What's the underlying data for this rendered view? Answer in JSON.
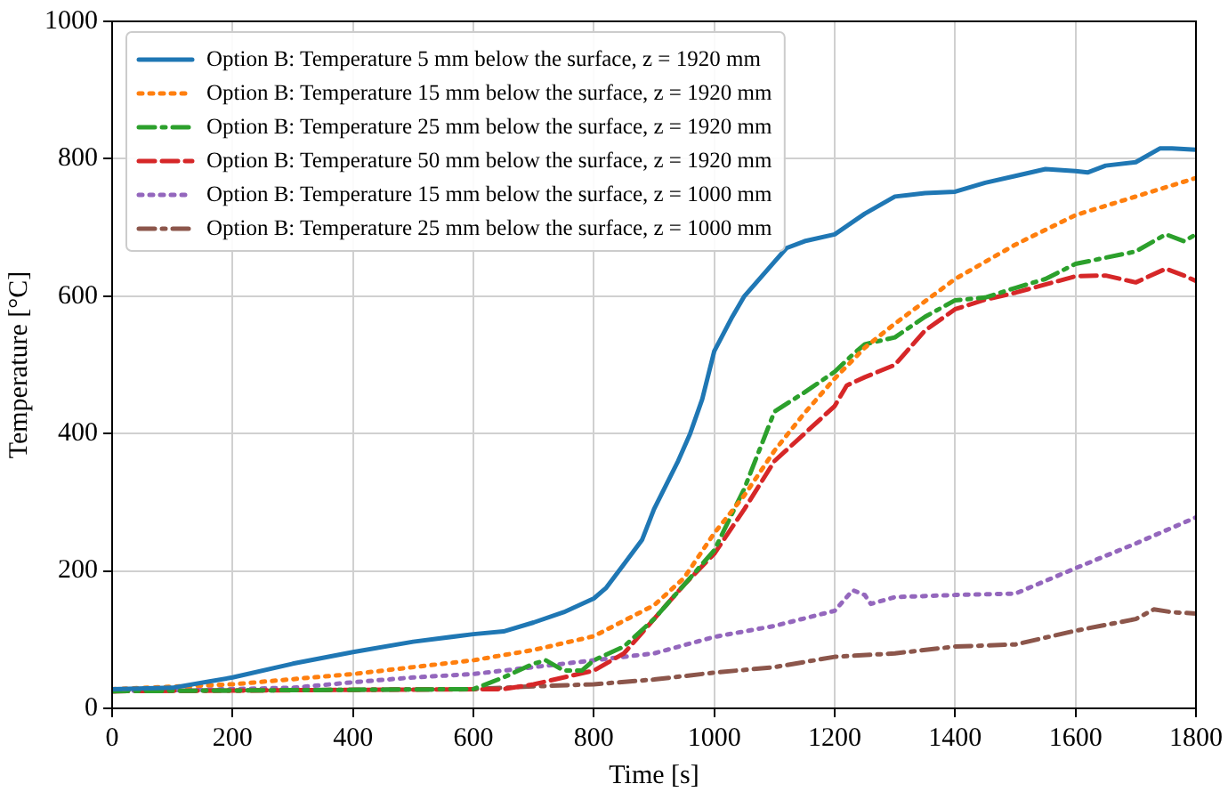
{
  "chart_data": {
    "type": "line",
    "xlabel": "Time [s]",
    "ylabel": "Temperature [°C]",
    "xlim": [
      0,
      1800
    ],
    "xticks": [
      0,
      200,
      400,
      600,
      800,
      1000,
      1200,
      1400,
      1600,
      1800
    ],
    "ylim": [
      0,
      1000
    ],
    "yticks": [
      0,
      200,
      400,
      600,
      800,
      1000
    ],
    "grid": true,
    "legend": "top left",
    "marker": "none",
    "series": [
      {
        "name": "Option B: Temperature 5 mm below the surface, z = 1920 mm",
        "color": "#1f77b4",
        "line_style": "solid",
        "x": [
          0,
          100,
          200,
          300,
          400,
          500,
          600,
          650,
          700,
          750,
          800,
          820,
          850,
          880,
          900,
          940,
          960,
          980,
          1000,
          1030,
          1050,
          1080,
          1100,
          1120,
          1150,
          1200,
          1250,
          1300,
          1350,
          1400,
          1450,
          1500,
          1550,
          1600,
          1620,
          1650,
          1700,
          1740,
          1760,
          1800
        ],
        "values": [
          28,
          30,
          45,
          65,
          82,
          97,
          108,
          112,
          125,
          140,
          160,
          175,
          210,
          245,
          290,
          360,
          400,
          450,
          520,
          570,
          600,
          630,
          650,
          670,
          680,
          690,
          720,
          745,
          750,
          752,
          765,
          775,
          785,
          782,
          780,
          790,
          795,
          815,
          815,
          813
        ]
      },
      {
        "name": "Option B: Temperature 15 mm below the surface, z = 1920 mm",
        "color": "#ff7f0e",
        "line_style": "dotted",
        "x": [
          0,
          200,
          400,
          600,
          700,
          800,
          900,
          950,
          1000,
          1050,
          1100,
          1150,
          1200,
          1250,
          1300,
          1400,
          1500,
          1600,
          1700,
          1800
        ],
        "values": [
          28,
          35,
          50,
          70,
          85,
          105,
          150,
          190,
          255,
          310,
          375,
          430,
          480,
          525,
          560,
          625,
          675,
          718,
          745,
          772
        ]
      },
      {
        "name": "Option B: Temperature 25 mm below the surface, z = 1920 mm",
        "color": "#2ca02c",
        "line_style": "dashdot",
        "x": [
          0,
          600,
          650,
          700,
          720,
          750,
          780,
          800,
          850,
          900,
          950,
          1000,
          1050,
          1100,
          1150,
          1200,
          1230,
          1250,
          1300,
          1350,
          1400,
          1450,
          1500,
          1550,
          1600,
          1700,
          1750,
          1780,
          1800
        ],
        "values": [
          25,
          28,
          45,
          65,
          70,
          55,
          55,
          70,
          90,
          130,
          180,
          230,
          320,
          432,
          460,
          490,
          515,
          530,
          540,
          570,
          594,
          598,
          612,
          625,
          647,
          665,
          690,
          680,
          690
        ]
      },
      {
        "name": "Option B: Temperature 50 mm below the surface, z = 1920 mm",
        "color": "#d62728",
        "line_style": "dashed",
        "x": [
          0,
          650,
          700,
          800,
          850,
          900,
          950,
          1000,
          1050,
          1100,
          1150,
          1200,
          1220,
          1250,
          1300,
          1350,
          1400,
          1450,
          1500,
          1600,
          1650,
          1700,
          1750,
          1780,
          1800
        ],
        "values": [
          25,
          28,
          35,
          55,
          80,
          130,
          180,
          225,
          290,
          360,
          400,
          440,
          470,
          482,
          500,
          550,
          581,
          595,
          605,
          629,
          630,
          620,
          640,
          630,
          622
        ]
      },
      {
        "name": "Option B: Temperature 15 mm below the surface, z = 1000 mm",
        "color": "#9467bd",
        "line_style": "dotted",
        "x": [
          0,
          200,
          300,
          400,
          500,
          600,
          700,
          800,
          900,
          1000,
          1100,
          1200,
          1230,
          1250,
          1260,
          1300,
          1400,
          1500,
          1600,
          1700,
          1800
        ],
        "values": [
          25,
          28,
          30,
          38,
          45,
          50,
          60,
          70,
          80,
          104,
          120,
          142,
          172,
          165,
          152,
          162,
          165,
          167,
          204,
          240,
          278
        ]
      },
      {
        "name": "Option B: Temperature 25 mm below the surface, z = 1000 mm",
        "color": "#8c564b",
        "line_style": "dashdot",
        "x": [
          0,
          600,
          700,
          800,
          900,
          1000,
          1100,
          1200,
          1300,
          1400,
          1500,
          1600,
          1700,
          1730,
          1760,
          1800
        ],
        "values": [
          25,
          28,
          32,
          35,
          42,
          52,
          60,
          75,
          80,
          90,
          93,
          113,
          130,
          144,
          140,
          138
        ]
      }
    ]
  }
}
